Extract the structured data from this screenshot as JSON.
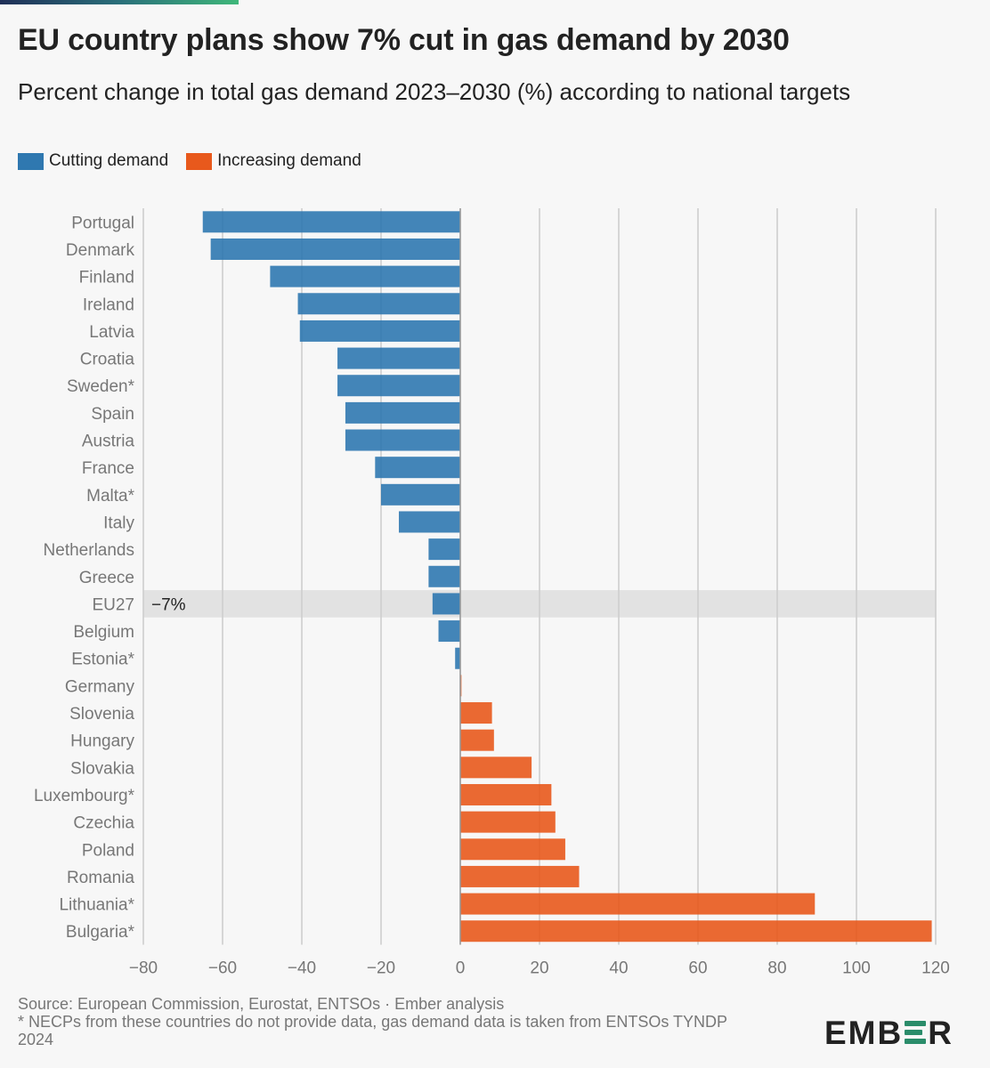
{
  "header": {
    "title": "EU country plans show 7% cut in gas demand by 2030",
    "subtitle": "Percent change in total gas demand 2023–2030 (%) according to national targets"
  },
  "legend": [
    {
      "label": "Cutting demand",
      "color": "#2f78b0"
    },
    {
      "label": "Increasing demand",
      "color": "#e8591c"
    }
  ],
  "colors": {
    "cut": "#2f78b0",
    "increase": "#e8591c",
    "highlight_band": "#e2e2e2",
    "grid": "#cccccc"
  },
  "chart_data": {
    "type": "bar",
    "orientation": "horizontal",
    "title": "EU country plans show 7% cut in gas demand by 2030",
    "xlabel": "Percent change in total gas demand 2023–2030 (%)",
    "xlim": [
      -80,
      120
    ],
    "xticks": [
      -80,
      -60,
      -40,
      -20,
      0,
      20,
      40,
      60,
      80,
      100,
      120
    ],
    "tick_labels": [
      "−80",
      "−60",
      "−40",
      "−20",
      "0",
      "20",
      "40",
      "60",
      "80",
      "100",
      "120"
    ],
    "categories": [
      "Portugal",
      "Denmark",
      "Finland",
      "Ireland",
      "Latvia",
      "Croatia",
      "Sweden*",
      "Spain",
      "Austria",
      "France",
      "Malta*",
      "Italy",
      "Netherlands",
      "Greece",
      "EU27",
      "Belgium",
      "Estonia*",
      "Germany",
      "Slovenia",
      "Hungary",
      "Slovakia",
      "Luxembourg*",
      "Czechia",
      "Poland",
      "Romania",
      "Lithuania*",
      "Bulgaria*"
    ],
    "values": [
      -65,
      -63,
      -48,
      -41,
      -40.5,
      -31,
      -31,
      -29,
      -29,
      -21.5,
      -20,
      -15.5,
      -8,
      -8,
      -7,
      -5.5,
      -1.3,
      0.3,
      8,
      8.5,
      18,
      23,
      24,
      26.5,
      30,
      89.5,
      119
    ],
    "highlight": {
      "category": "EU27",
      "label": "−7%"
    }
  },
  "footer": {
    "source": "Source: European Commission, Eurostat, ENTSOs · Ember analysis",
    "note": "* NECPs from these countries do not provide data, gas demand data is taken from ENTSOs TYNDP 2024"
  },
  "logo": {
    "left": "EMB",
    "right": "R",
    "alt": "EMBER"
  }
}
